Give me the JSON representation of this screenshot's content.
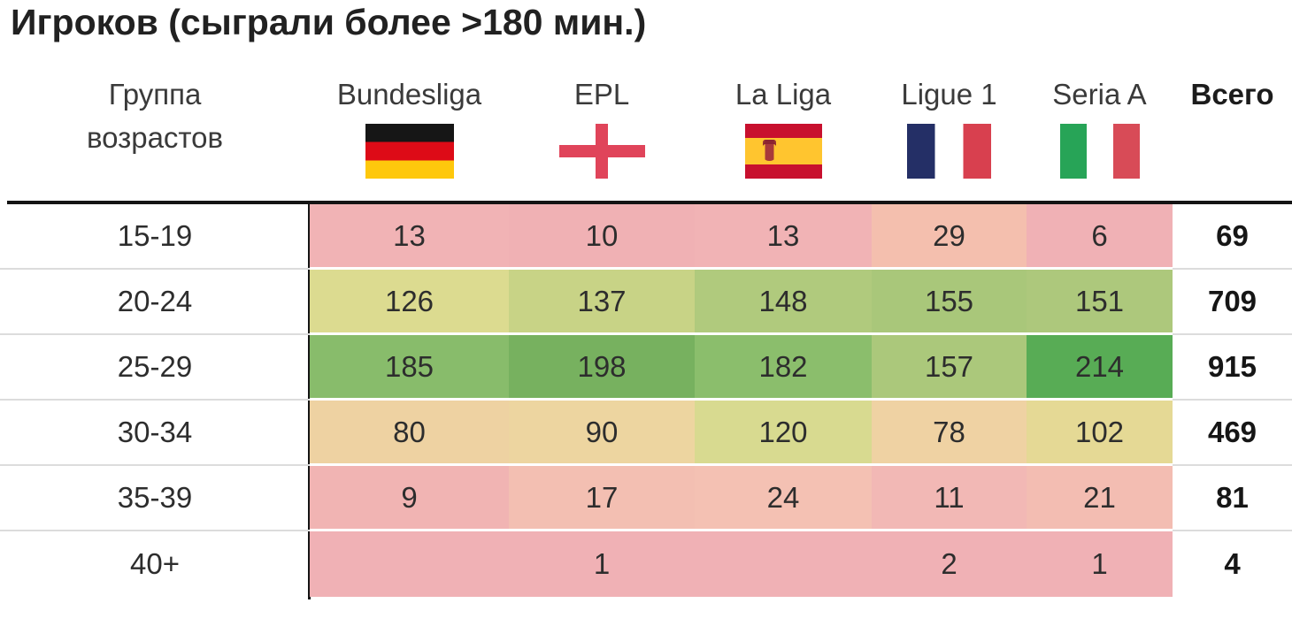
{
  "title": "Игроков (сыграли более >180 мин.)",
  "table": {
    "row_header": {
      "line1": "Группа",
      "line2": "возрастов"
    },
    "columns": [
      {
        "label": "Bundesliga",
        "flag": "germany"
      },
      {
        "label": "EPL",
        "flag": "england"
      },
      {
        "label": "La Liga",
        "flag": "spain"
      },
      {
        "label": "Ligue 1",
        "flag": "france"
      },
      {
        "label": "Seria A",
        "flag": "italy"
      }
    ],
    "total_label": "Всего",
    "rows": [
      {
        "age": "15-19",
        "cells": [
          {
            "text": "13",
            "bg": "#f1b3b5"
          },
          {
            "text": "10",
            "bg": "#f0b1b4"
          },
          {
            "text": "13",
            "bg": "#f1b3b5"
          },
          {
            "text": "29",
            "bg": "#f4bfae"
          },
          {
            "text": "6",
            "bg": "#f0b1b5"
          }
        ],
        "total": "69"
      },
      {
        "age": "20-24",
        "cells": [
          {
            "text": "126",
            "bg": "#dcdb90"
          },
          {
            "text": "137",
            "bg": "#c8d386"
          },
          {
            "text": "148",
            "bg": "#b0ca7d"
          },
          {
            "text": "155",
            "bg": "#a9c77a"
          },
          {
            "text": "151",
            "bg": "#adc87c"
          }
        ],
        "total": "709"
      },
      {
        "age": "25-29",
        "cells": [
          {
            "text": "185",
            "bg": "#88bc6b"
          },
          {
            "text": "198",
            "bg": "#77b15f"
          },
          {
            "text": "182",
            "bg": "#8bbe6c"
          },
          {
            "text": "157",
            "bg": "#abc87b"
          },
          {
            "text": "214",
            "bg": "#58ac55"
          }
        ],
        "total": "915"
      },
      {
        "age": "30-34",
        "cells": [
          {
            "text": "80",
            "bg": "#eed2a2"
          },
          {
            "text": "90",
            "bg": "#edd5a0"
          },
          {
            "text": "120",
            "bg": "#d8da90"
          },
          {
            "text": "78",
            "bg": "#efd2a3"
          },
          {
            "text": "102",
            "bg": "#e5d995"
          }
        ],
        "total": "469"
      },
      {
        "age": "35-39",
        "cells": [
          {
            "text": "9",
            "bg": "#f1b4b3"
          },
          {
            "text": "17",
            "bg": "#f3bfb2"
          },
          {
            "text": "24",
            "bg": "#f4c1b3"
          },
          {
            "text": "11",
            "bg": "#f2b8b5"
          },
          {
            "text": "21",
            "bg": "#f3bdb2"
          }
        ],
        "total": "81"
      },
      {
        "age": "40+",
        "cells": [
          {
            "text": "",
            "bg": "#f0b1b5"
          },
          {
            "text": "1",
            "bg": "#f0b1b5"
          },
          {
            "text": "",
            "bg": "#f0b1b5"
          },
          {
            "text": "2",
            "bg": "#f0b1b5"
          },
          {
            "text": "1",
            "bg": "#f0b1b5"
          }
        ],
        "total": "4"
      }
    ]
  },
  "colors": {
    "heatmap_low": "#f0b1b5",
    "heatmap_mid": "#dcdb90",
    "heatmap_high": "#58ac55",
    "separator_gray": "#dcdcdc",
    "table_border_black": "#141414",
    "css_vars": {
      "--de-black": "#161616",
      "--de-red": "#dd0b17",
      "--de-gold": "#fec80c",
      "--en-cross": "#e0445a",
      "--es-red": "#c8102e",
      "--es-yellow": "#ffc52f",
      "--es-crest": "#a83a3a",
      "--es-crest-dark": "#8c2430",
      "--fr-blue": "#242f66",
      "--fr-red": "#d8404f",
      "--it-green": "#27a457",
      "--it-red": "#d84b57"
    }
  },
  "chart_data": {
    "type": "heatmap",
    "title": "Игроков (сыграли более >180 мин.)",
    "row_axis_label": "Группа возрастов",
    "columns": [
      "Bundesliga",
      "EPL",
      "La Liga",
      "Ligue 1",
      "Seria A"
    ],
    "rows": [
      "15-19",
      "20-24",
      "25-29",
      "30-34",
      "35-39",
      "40+"
    ],
    "values": [
      [
        13,
        10,
        13,
        29,
        6
      ],
      [
        126,
        137,
        148,
        155,
        151
      ],
      [
        185,
        198,
        182,
        157,
        214
      ],
      [
        80,
        90,
        120,
        78,
        102
      ],
      [
        9,
        17,
        24,
        11,
        21
      ],
      [
        null,
        1,
        null,
        2,
        1
      ]
    ],
    "total_label": "Всего",
    "totals": [
      69,
      709,
      915,
      469,
      81,
      4
    ],
    "color_scale": "3-color conditional format: low=red/pink, mid=yellow, high=green",
    "legend_position": "none",
    "grid": "off"
  }
}
